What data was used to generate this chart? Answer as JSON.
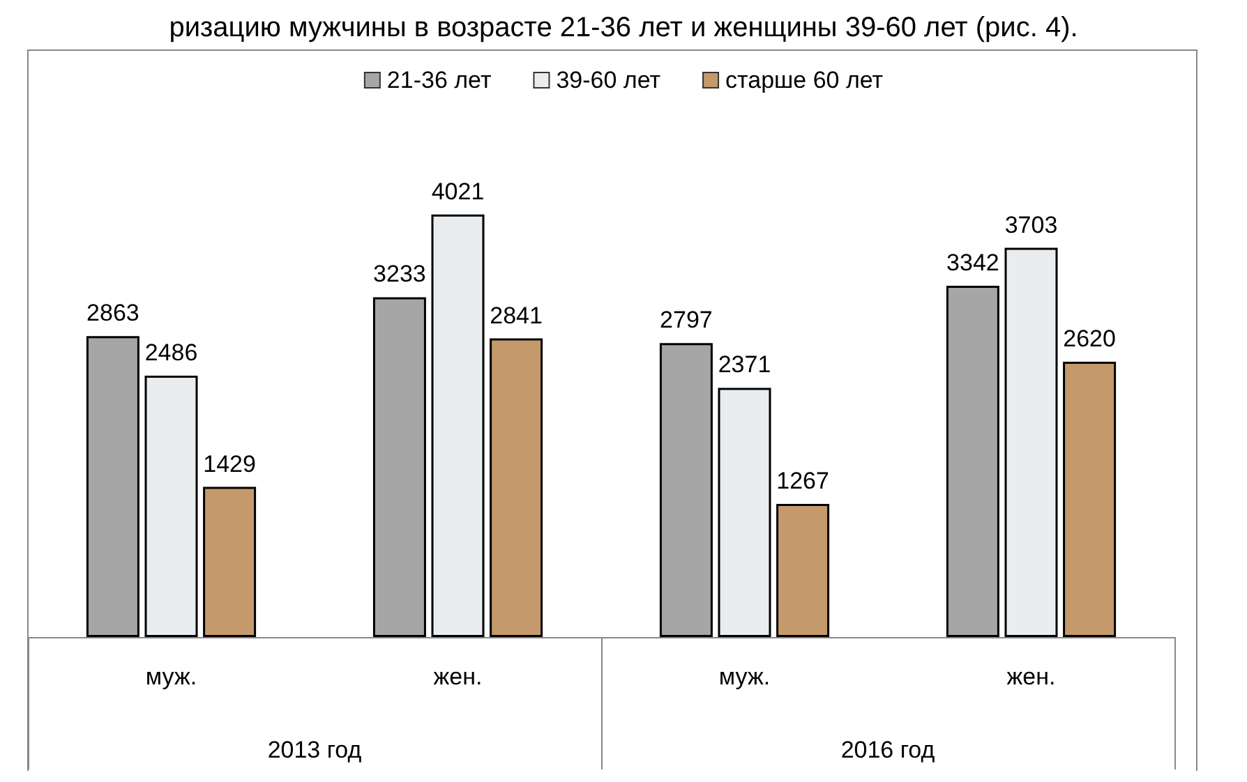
{
  "chart_data": {
    "type": "bar",
    "categories": [
      "муж.",
      "жен.",
      "муж.",
      "жен."
    ],
    "series": [
      {
        "name": "21-36 лет",
        "color": "#a6a6a6",
        "values": [
          2863,
          3233,
          2797,
          3342
        ]
      },
      {
        "name": "39-60 лет",
        "color": "#e9edef",
        "values": [
          2486,
          4021,
          2371,
          3703
        ]
      },
      {
        "name": "старше 60 лет",
        "color": "#c49a6c",
        "values": [
          1429,
          2841,
          1267,
          2620
        ]
      }
    ],
    "data_labels": true,
    "legend": "top",
    "annotations": [
      "ризацию мужчины в возрасте 21-36 лет и женщины 39-60 лет (рис. 4).",
      "2013 год",
      "2016 год"
    ]
  }
}
